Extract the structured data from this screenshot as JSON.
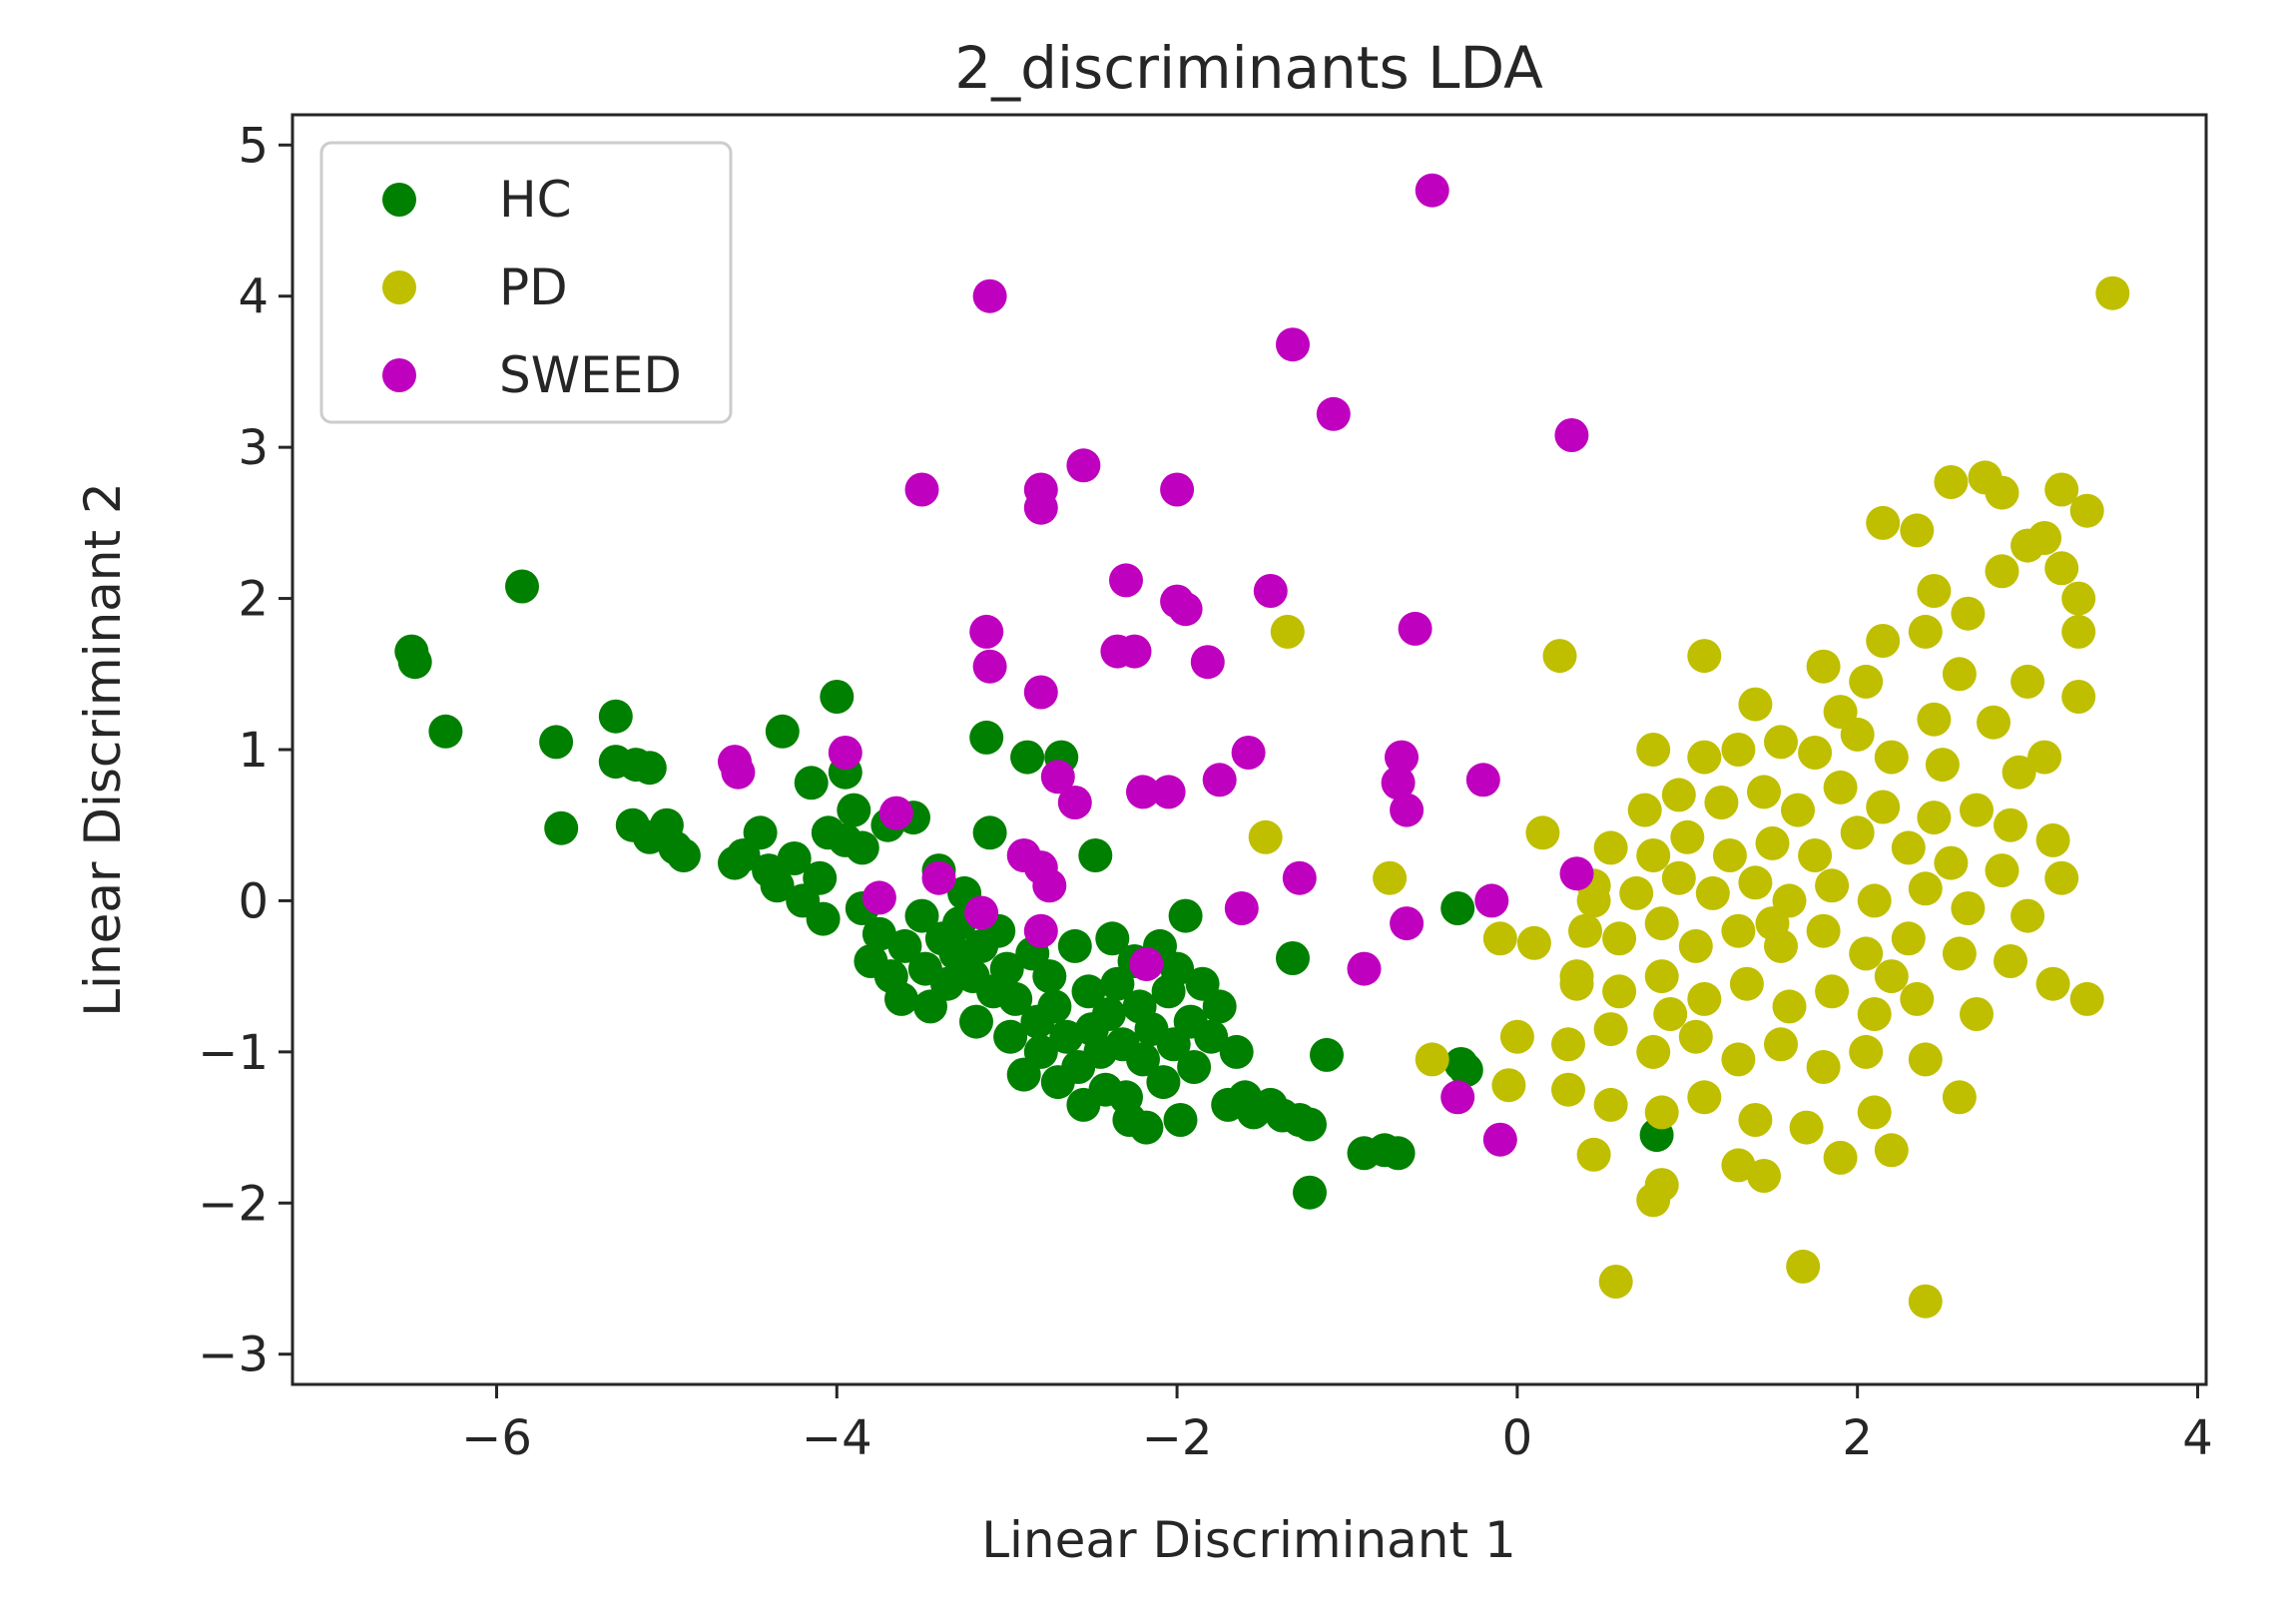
{
  "chart_data": {
    "type": "scatter",
    "title": "2_discriminants LDA",
    "xlabel": "Linear Discriminant 1",
    "ylabel": "Linear Discriminant 2",
    "xlim": [
      -7.2,
      4.05
    ],
    "ylim": [
      -3.2,
      5.2
    ],
    "xticks": [
      -6,
      -4,
      -2,
      0,
      2,
      4
    ],
    "yticks": [
      -3,
      -2,
      -1,
      0,
      1,
      2,
      3,
      4,
      5
    ],
    "xtick_labels": [
      "−6",
      "−4",
      "−2",
      "0",
      "2",
      "4"
    ],
    "ytick_labels": [
      "−3",
      "−2",
      "−1",
      "0",
      "1",
      "2",
      "3",
      "4",
      "5"
    ],
    "legend_position": "upper-left",
    "series": [
      {
        "name": "HC",
        "color": "#008000",
        "points": [
          [
            -6.5,
            1.65
          ],
          [
            -6.48,
            1.58
          ],
          [
            -6.3,
            1.12
          ],
          [
            -5.85,
            2.08
          ],
          [
            -5.65,
            1.05
          ],
          [
            -5.62,
            0.48
          ],
          [
            -5.3,
            1.22
          ],
          [
            -5.3,
            0.92
          ],
          [
            -5.18,
            0.9
          ],
          [
            -5.1,
            0.88
          ],
          [
            -5.2,
            0.5
          ],
          [
            -5.1,
            0.42
          ],
          [
            -5.0,
            0.5
          ],
          [
            -4.95,
            0.35
          ],
          [
            -4.9,
            0.3
          ],
          [
            -4.6,
            0.25
          ],
          [
            -4.55,
            0.3
          ],
          [
            -4.45,
            0.45
          ],
          [
            -4.4,
            0.2
          ],
          [
            -4.35,
            0.1
          ],
          [
            -4.32,
            1.12
          ],
          [
            -4.25,
            0.28
          ],
          [
            -4.2,
            0.0
          ],
          [
            -4.15,
            0.78
          ],
          [
            -4.1,
            0.15
          ],
          [
            -4.08,
            -0.12
          ],
          [
            -4.05,
            0.45
          ],
          [
            -4.0,
            1.35
          ],
          [
            -3.95,
            0.85
          ],
          [
            -3.95,
            0.4
          ],
          [
            -3.9,
            0.6
          ],
          [
            -3.85,
            0.35
          ],
          [
            -3.85,
            -0.05
          ],
          [
            -3.8,
            -0.4
          ],
          [
            -3.75,
            -0.22
          ],
          [
            -3.7,
            0.5
          ],
          [
            -3.68,
            -0.5
          ],
          [
            -3.62,
            -0.65
          ],
          [
            -3.6,
            -0.3
          ],
          [
            -3.55,
            0.55
          ],
          [
            -3.5,
            -0.1
          ],
          [
            -3.48,
            -0.45
          ],
          [
            -3.45,
            -0.7
          ],
          [
            -3.4,
            0.2
          ],
          [
            -3.38,
            -0.25
          ],
          [
            -3.35,
            -0.55
          ],
          [
            -3.3,
            -0.35
          ],
          [
            -3.28,
            -0.15
          ],
          [
            -3.25,
            0.05
          ],
          [
            -3.2,
            -0.5
          ],
          [
            -3.18,
            -0.8
          ],
          [
            -3.15,
            -0.3
          ],
          [
            -3.12,
            1.08
          ],
          [
            -3.1,
            0.45
          ],
          [
            -3.08,
            -0.6
          ],
          [
            -3.05,
            -0.2
          ],
          [
            -3.0,
            -0.45
          ],
          [
            -2.98,
            -0.9
          ],
          [
            -2.95,
            -0.65
          ],
          [
            -2.9,
            -1.15
          ],
          [
            -2.88,
            0.95
          ],
          [
            -2.85,
            -0.35
          ],
          [
            -2.82,
            -0.8
          ],
          [
            -2.8,
            -1.0
          ],
          [
            -2.75,
            -0.5
          ],
          [
            -2.72,
            -0.7
          ],
          [
            -2.7,
            -1.2
          ],
          [
            -2.68,
            0.95
          ],
          [
            -2.65,
            -0.9
          ],
          [
            -2.6,
            -0.3
          ],
          [
            -2.58,
            -1.1
          ],
          [
            -2.55,
            -1.35
          ],
          [
            -2.52,
            -0.6
          ],
          [
            -2.5,
            -0.85
          ],
          [
            -2.48,
            0.3
          ],
          [
            -2.45,
            -1.0
          ],
          [
            -2.42,
            -1.25
          ],
          [
            -2.4,
            -0.75
          ],
          [
            -2.38,
            -0.25
          ],
          [
            -2.35,
            -0.55
          ],
          [
            -2.32,
            -0.95
          ],
          [
            -2.3,
            -1.3
          ],
          [
            -2.28,
            -1.45
          ],
          [
            -2.25,
            -0.4
          ],
          [
            -2.22,
            -0.7
          ],
          [
            -2.2,
            -1.05
          ],
          [
            -2.18,
            -1.5
          ],
          [
            -2.15,
            -0.85
          ],
          [
            -2.1,
            -0.3
          ],
          [
            -2.08,
            -1.2
          ],
          [
            -2.05,
            -0.6
          ],
          [
            -2.02,
            -0.95
          ],
          [
            -2.0,
            -0.45
          ],
          [
            -1.98,
            -1.45
          ],
          [
            -1.95,
            -0.1
          ],
          [
            -1.92,
            -0.8
          ],
          [
            -1.9,
            -1.1
          ],
          [
            -1.85,
            -0.55
          ],
          [
            -1.8,
            -0.9
          ],
          [
            -1.75,
            -0.7
          ],
          [
            -1.7,
            -1.35
          ],
          [
            -1.65,
            -1.0
          ],
          [
            -1.6,
            -1.3
          ],
          [
            -1.55,
            -1.4
          ],
          [
            -1.45,
            -1.35
          ],
          [
            -1.38,
            -1.42
          ],
          [
            -1.32,
            -0.38
          ],
          [
            -1.28,
            -1.45
          ],
          [
            -1.22,
            -1.48
          ],
          [
            -1.22,
            -1.93
          ],
          [
            -1.12,
            -1.02
          ],
          [
            -0.9,
            -1.67
          ],
          [
            -0.78,
            -1.65
          ],
          [
            -0.7,
            -1.67
          ],
          [
            -0.35,
            -0.05
          ],
          [
            -0.33,
            -1.08
          ],
          [
            -0.3,
            -1.12
          ],
          [
            0.82,
            -1.55
          ]
        ]
      },
      {
        "name": "PD",
        "color": "#bfbf00",
        "points": [
          [
            3.5,
            4.02
          ],
          [
            2.75,
            2.8
          ],
          [
            2.55,
            2.77
          ],
          [
            2.85,
            2.7
          ],
          [
            3.2,
            2.72
          ],
          [
            3.35,
            2.58
          ],
          [
            2.15,
            2.5
          ],
          [
            2.35,
            2.45
          ],
          [
            3.1,
            2.4
          ],
          [
            3.0,
            2.35
          ],
          [
            3.2,
            2.2
          ],
          [
            3.3,
            2.0
          ],
          [
            2.45,
            2.05
          ],
          [
            2.85,
            2.18
          ],
          [
            2.65,
            1.9
          ],
          [
            2.4,
            1.78
          ],
          [
            2.15,
            1.72
          ],
          [
            3.3,
            1.78
          ],
          [
            0.25,
            1.62
          ],
          [
            1.1,
            1.62
          ],
          [
            1.8,
            1.55
          ],
          [
            2.05,
            1.45
          ],
          [
            2.6,
            1.5
          ],
          [
            3.0,
            1.45
          ],
          [
            3.3,
            1.35
          ],
          [
            1.4,
            1.3
          ],
          [
            1.9,
            1.25
          ],
          [
            2.45,
            1.2
          ],
          [
            2.8,
            1.18
          ],
          [
            0.8,
            1.0
          ],
          [
            1.1,
            0.95
          ],
          [
            1.3,
            1.0
          ],
          [
            1.55,
            1.05
          ],
          [
            1.75,
            0.98
          ],
          [
            2.0,
            1.1
          ],
          [
            2.2,
            0.95
          ],
          [
            2.5,
            0.9
          ],
          [
            2.95,
            0.85
          ],
          [
            3.1,
            0.95
          ],
          [
            0.75,
            0.6
          ],
          [
            0.95,
            0.7
          ],
          [
            1.2,
            0.65
          ],
          [
            1.45,
            0.72
          ],
          [
            1.65,
            0.6
          ],
          [
            1.9,
            0.75
          ],
          [
            2.15,
            0.62
          ],
          [
            2.45,
            0.55
          ],
          [
            2.7,
            0.6
          ],
          [
            2.9,
            0.5
          ],
          [
            3.15,
            0.4
          ],
          [
            0.15,
            0.45
          ],
          [
            0.55,
            0.35
          ],
          [
            0.8,
            0.3
          ],
          [
            1.0,
            0.42
          ],
          [
            1.25,
            0.3
          ],
          [
            1.5,
            0.38
          ],
          [
            1.75,
            0.3
          ],
          [
            2.0,
            0.45
          ],
          [
            2.3,
            0.35
          ],
          [
            2.55,
            0.25
          ],
          [
            2.85,
            0.2
          ],
          [
            3.2,
            0.15
          ],
          [
            0.45,
            0.1
          ],
          [
            0.7,
            0.05
          ],
          [
            0.95,
            0.15
          ],
          [
            1.15,
            0.05
          ],
          [
            1.4,
            0.12
          ],
          [
            1.6,
            0.0
          ],
          [
            1.85,
            0.1
          ],
          [
            2.1,
            0.0
          ],
          [
            2.4,
            0.08
          ],
          [
            2.65,
            -0.05
          ],
          [
            3.0,
            -0.1
          ],
          [
            -0.1,
            -0.25
          ],
          [
            0.1,
            -0.28
          ],
          [
            0.4,
            -0.2
          ],
          [
            0.6,
            -0.25
          ],
          [
            0.85,
            -0.15
          ],
          [
            1.05,
            -0.3
          ],
          [
            1.3,
            -0.2
          ],
          [
            1.55,
            -0.3
          ],
          [
            1.8,
            -0.2
          ],
          [
            2.05,
            -0.35
          ],
          [
            2.3,
            -0.25
          ],
          [
            2.6,
            -0.35
          ],
          [
            2.9,
            -0.4
          ],
          [
            3.15,
            -0.55
          ],
          [
            3.35,
            -0.65
          ],
          [
            0.35,
            -0.55
          ],
          [
            0.6,
            -0.6
          ],
          [
            0.85,
            -0.5
          ],
          [
            1.1,
            -0.65
          ],
          [
            1.35,
            -0.55
          ],
          [
            1.6,
            -0.7
          ],
          [
            1.85,
            -0.6
          ],
          [
            2.1,
            -0.75
          ],
          [
            2.35,
            -0.65
          ],
          [
            2.7,
            -0.75
          ],
          [
            0.0,
            -0.9
          ],
          [
            0.3,
            -0.95
          ],
          [
            0.55,
            -0.85
          ],
          [
            0.8,
            -1.0
          ],
          [
            1.05,
            -0.9
          ],
          [
            1.3,
            -1.05
          ],
          [
            1.55,
            -0.95
          ],
          [
            1.8,
            -1.1
          ],
          [
            2.05,
            -1.0
          ],
          [
            2.4,
            -1.05
          ],
          [
            -0.5,
            -1.05
          ],
          [
            -0.05,
            -1.22
          ],
          [
            0.3,
            -1.25
          ],
          [
            0.55,
            -1.35
          ],
          [
            0.85,
            -1.4
          ],
          [
            1.1,
            -1.3
          ],
          [
            1.4,
            -1.45
          ],
          [
            1.7,
            -1.5
          ],
          [
            2.1,
            -1.4
          ],
          [
            2.6,
            -1.3
          ],
          [
            0.45,
            -1.68
          ],
          [
            0.85,
            -1.88
          ],
          [
            1.3,
            -1.75
          ],
          [
            1.45,
            -1.82
          ],
          [
            1.9,
            -1.7
          ],
          [
            2.2,
            -1.65
          ],
          [
            0.8,
            -1.98
          ],
          [
            0.58,
            -2.52
          ],
          [
            1.68,
            -2.42
          ],
          [
            2.4,
            -2.65
          ],
          [
            -1.35,
            1.78
          ],
          [
            -1.48,
            0.42
          ],
          [
            -0.75,
            0.15
          ],
          [
            0.45,
            0.0
          ],
          [
            0.35,
            -0.5
          ],
          [
            0.9,
            -0.75
          ],
          [
            1.5,
            -0.15
          ],
          [
            2.2,
            -0.5
          ]
        ]
      },
      {
        "name": "SWEED",
        "color": "#bf00bf",
        "points": [
          [
            -0.5,
            4.7
          ],
          [
            -3.1,
            4.0
          ],
          [
            -1.32,
            3.68
          ],
          [
            -1.08,
            3.22
          ],
          [
            0.32,
            3.08
          ],
          [
            -3.5,
            2.72
          ],
          [
            -2.8,
            2.72
          ],
          [
            -2.8,
            2.6
          ],
          [
            -2.55,
            2.88
          ],
          [
            -2.0,
            2.72
          ],
          [
            -2.3,
            2.12
          ],
          [
            -2.0,
            1.98
          ],
          [
            -1.95,
            1.93
          ],
          [
            -1.45,
            2.05
          ],
          [
            -0.6,
            1.8
          ],
          [
            -3.12,
            1.78
          ],
          [
            -3.1,
            1.55
          ],
          [
            -2.35,
            1.65
          ],
          [
            -2.25,
            1.65
          ],
          [
            -1.82,
            1.58
          ],
          [
            -2.8,
            1.38
          ],
          [
            -4.6,
            0.92
          ],
          [
            -4.58,
            0.85
          ],
          [
            -3.95,
            0.98
          ],
          [
            -3.65,
            0.58
          ],
          [
            -2.7,
            0.82
          ],
          [
            -2.6,
            0.65
          ],
          [
            -2.2,
            0.72
          ],
          [
            -2.05,
            0.72
          ],
          [
            -1.75,
            0.8
          ],
          [
            -1.58,
            0.98
          ],
          [
            -0.68,
            0.95
          ],
          [
            -0.7,
            0.78
          ],
          [
            -0.65,
            0.6
          ],
          [
            -0.2,
            0.8
          ],
          [
            -3.75,
            0.02
          ],
          [
            -3.4,
            0.15
          ],
          [
            -2.9,
            0.3
          ],
          [
            -2.8,
            0.22
          ],
          [
            -2.75,
            0.1
          ],
          [
            -3.15,
            -0.08
          ],
          [
            -2.8,
            -0.2
          ],
          [
            -1.62,
            -0.05
          ],
          [
            -1.28,
            0.15
          ],
          [
            -0.65,
            -0.15
          ],
          [
            -0.15,
            0.0
          ],
          [
            0.35,
            0.18
          ],
          [
            -2.18,
            -0.42
          ],
          [
            -0.9,
            -0.45
          ],
          [
            -0.35,
            -1.3
          ],
          [
            -0.1,
            -1.58
          ]
        ]
      }
    ]
  }
}
